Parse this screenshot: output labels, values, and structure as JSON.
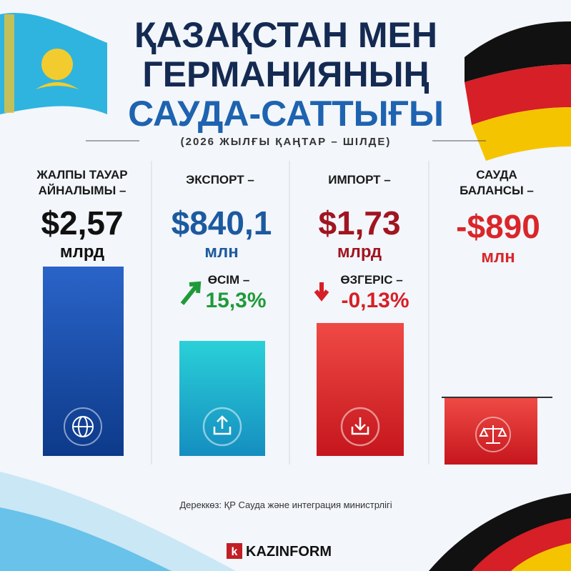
{
  "header": {
    "title_lines": [
      "ҚАЗАҚСТАН МЕН",
      "ГЕРМАНИЯНЫҢ",
      "САУДА-САТТЫҒЫ"
    ],
    "subtitle": "(2026 ЖЫЛҒЫ ҚАҢТАР – ШІЛДЕ)"
  },
  "columns": [
    {
      "label_lines": [
        "ЖАЛПЫ ТАУАР",
        "АЙНАЛЫМЫ –"
      ],
      "value": "$2,57",
      "unit": "млрд"
    },
    {
      "label_lines": [
        "ЭКСПОРТ –"
      ],
      "value": "$840,1",
      "unit": "млн",
      "change_label": "ӨСІМ –",
      "change_value": "15,3%"
    },
    {
      "label_lines": [
        "ИМПОРТ –"
      ],
      "value": "$1,73",
      "unit": "млрд",
      "change_label": "ӨЗГЕРІС –",
      "change_value": "-0,13%"
    },
    {
      "label_lines": [
        "САУДА",
        "БАЛАНСЫ –"
      ],
      "value": "-$890",
      "unit": "млн"
    }
  ],
  "footer": {
    "source": "Дереккөз: ҚР Сауда және интеграция министрлігі",
    "logo_letter": "k",
    "brand": "KAZINFORM"
  }
}
